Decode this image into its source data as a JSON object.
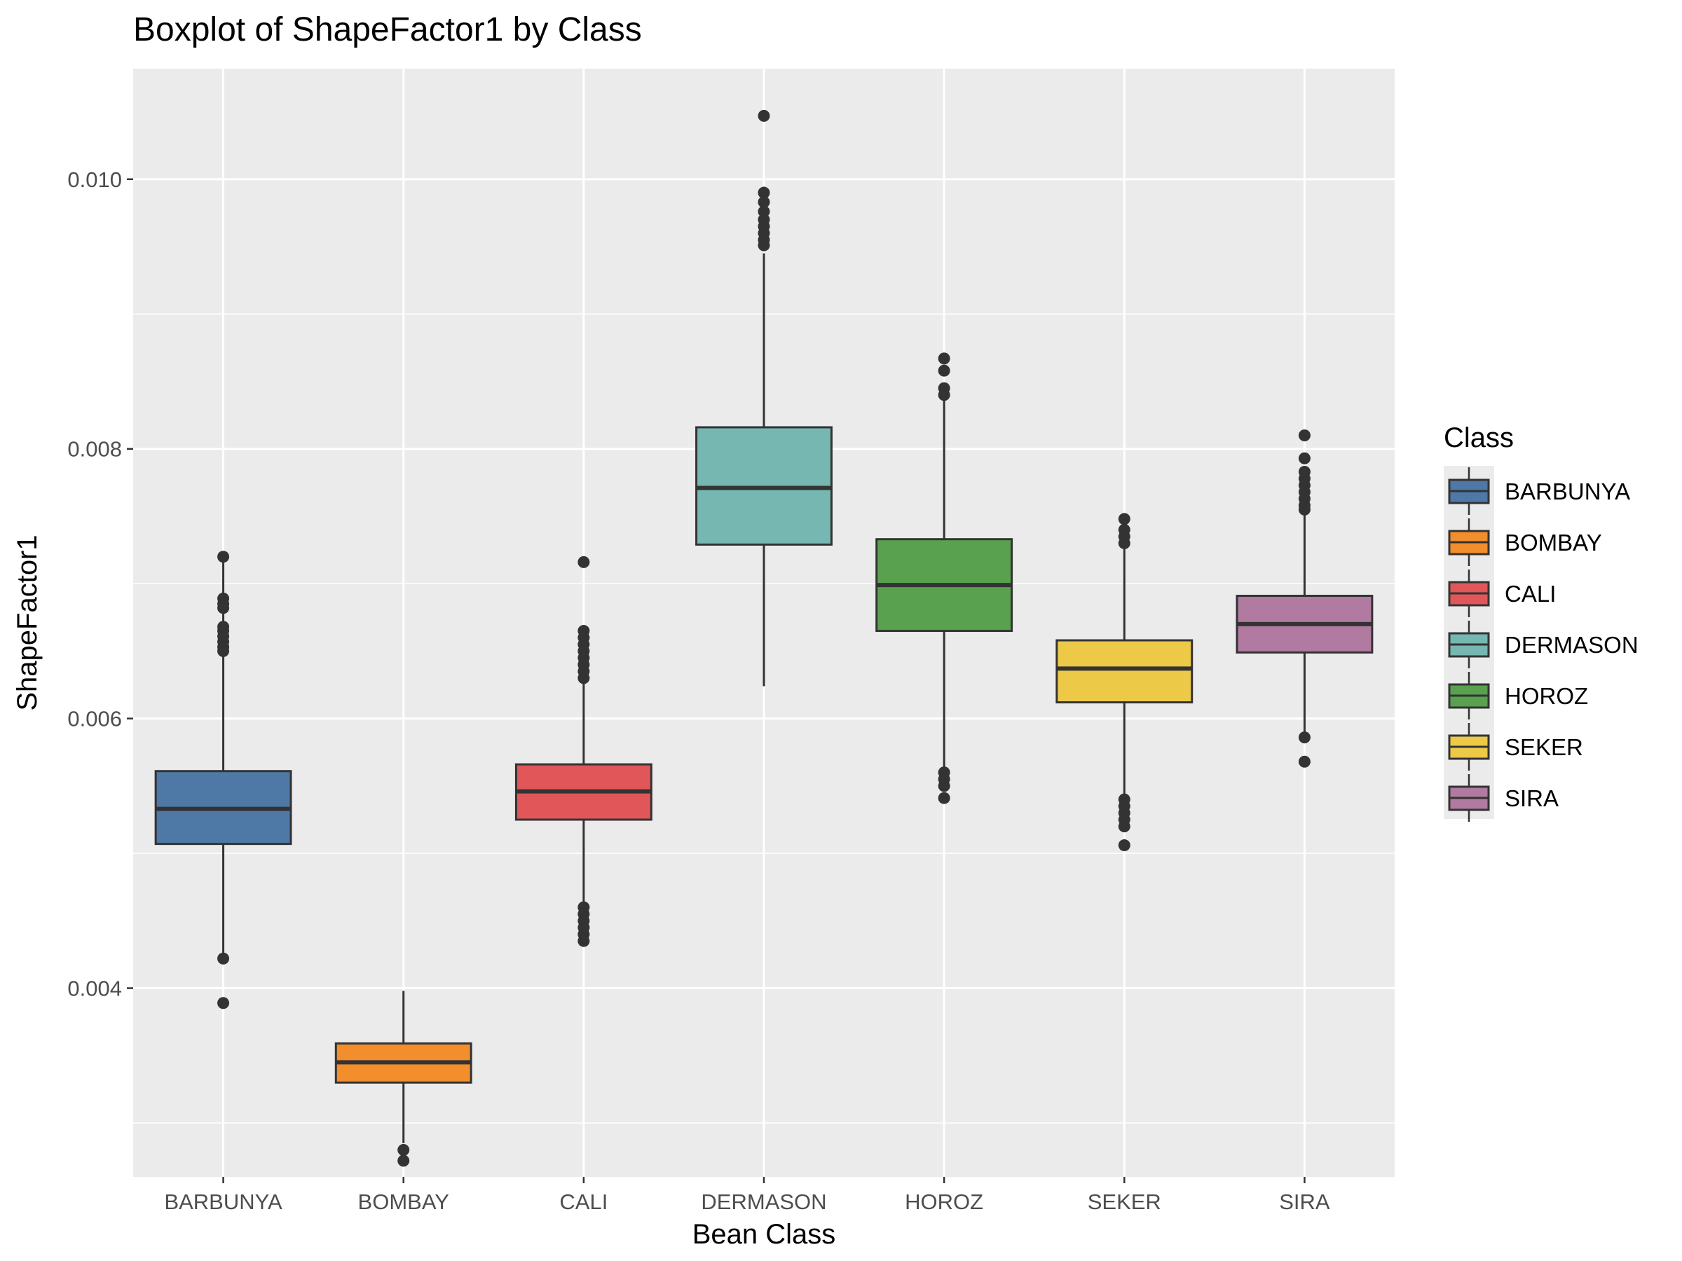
{
  "chart_data": {
    "type": "boxplot",
    "title": "Boxplot of ShapeFactor1 by Class",
    "xlabel": "Bean Class",
    "ylabel": "ShapeFactor1",
    "ylim": [
      0.0026,
      0.01082
    ],
    "y_ticks": [
      0.004,
      0.006,
      0.008,
      0.01
    ],
    "y_tick_labels": [
      "0.004",
      "0.006",
      "0.008",
      "0.010"
    ],
    "grid": true,
    "legend": {
      "title": "Class",
      "position": "right"
    },
    "categories": [
      "BARBUNYA",
      "BOMBAY",
      "CALI",
      "DERMASON",
      "HOROZ",
      "SEKER",
      "SIRA"
    ],
    "series": [
      {
        "name": "BARBUNYA",
        "color": "#4E79A7",
        "whisker_low": 0.00425,
        "q1": 0.00507,
        "median": 0.00533,
        "q3": 0.00561,
        "whisker_high": 0.00719,
        "outliers": [
          0.0072,
          0.00689,
          0.00685,
          0.00682,
          0.00668,
          0.00665,
          0.00661,
          0.00657,
          0.00653,
          0.0065,
          0.00422,
          0.00389
        ]
      },
      {
        "name": "BOMBAY",
        "color": "#F28E2B",
        "whisker_low": 0.00285,
        "q1": 0.0033,
        "median": 0.00345,
        "q3": 0.00359,
        "whisker_high": 0.00398,
        "outliers": [
          0.0028,
          0.00272
        ]
      },
      {
        "name": "CALI",
        "color": "#E15759",
        "whisker_low": 0.00463,
        "q1": 0.00525,
        "median": 0.00546,
        "q3": 0.00566,
        "whisker_high": 0.00663,
        "outliers": [
          0.00716,
          0.00665,
          0.0066,
          0.00655,
          0.0065,
          0.00645,
          0.0064,
          0.00635,
          0.0063,
          0.0046,
          0.00455,
          0.0045,
          0.00445,
          0.0044,
          0.00435
        ]
      },
      {
        "name": "DERMASON",
        "color": "#76B7B2",
        "whisker_low": 0.00624,
        "q1": 0.00729,
        "median": 0.00771,
        "q3": 0.00816,
        "whisker_high": 0.00945,
        "outliers": [
          0.01047,
          0.0099,
          0.00983,
          0.00976,
          0.0097,
          0.00965,
          0.0096,
          0.00955,
          0.00951
        ]
      },
      {
        "name": "HOROZ",
        "color": "#59A14F",
        "whisker_low": 0.00562,
        "q1": 0.00665,
        "median": 0.00699,
        "q3": 0.00733,
        "whisker_high": 0.00837,
        "outliers": [
          0.00867,
          0.00858,
          0.00845,
          0.0084,
          0.0056,
          0.00555,
          0.0055,
          0.00541
        ]
      },
      {
        "name": "SEKER",
        "color": "#EDC948",
        "whisker_low": 0.00542,
        "q1": 0.00612,
        "median": 0.00637,
        "q3": 0.00658,
        "whisker_high": 0.00728,
        "outliers": [
          0.00748,
          0.0074,
          0.00735,
          0.0073,
          0.0054,
          0.00535,
          0.0053,
          0.00525,
          0.0052,
          0.00506
        ]
      },
      {
        "name": "SIRA",
        "color": "#B07AA1",
        "whisker_low": 0.00588,
        "q1": 0.00649,
        "median": 0.0067,
        "q3": 0.00691,
        "whisker_high": 0.00753,
        "outliers": [
          0.0081,
          0.00793,
          0.00783,
          0.00778,
          0.00773,
          0.00768,
          0.00763,
          0.00758,
          0.00755,
          0.00586,
          0.00568
        ]
      }
    ]
  }
}
